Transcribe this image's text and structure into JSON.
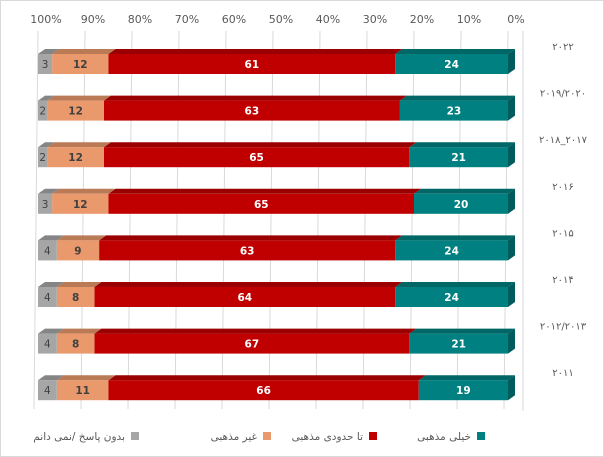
{
  "chart_data": {
    "type": "bar",
    "stacked": true,
    "orientation": "horizontal",
    "x_reversed": true,
    "xlim": [
      0,
      100
    ],
    "x_ticks": [
      "0%",
      "10%",
      "20%",
      "30%",
      "40%",
      "50%",
      "60%",
      "70%",
      "80%",
      "90%",
      "100%"
    ],
    "categories": [
      "۲۰۲۲",
      "۲۰۱۹/۲۰۲۰",
      "۲۰۱۸_۲۰۱۷",
      "۲۰۱۶",
      "۲۰۱۵",
      "۲۰۱۴",
      "۲۰۱۲/۲۰۱۳",
      "۲۰۱۱"
    ],
    "series": [
      {
        "name": "خیلی مذهبی",
        "color": "#008080",
        "values": [
          24,
          23,
          21,
          20,
          24,
          24,
          21,
          19
        ]
      },
      {
        "name": "تا حدودی مذهبی",
        "color": "#c00000",
        "values": [
          61,
          63,
          65,
          65,
          63,
          64,
          67,
          66
        ]
      },
      {
        "name": "غیر مذهبی",
        "color": "#e9996b",
        "values": [
          12,
          12,
          12,
          12,
          9,
          8,
          8,
          11
        ]
      },
      {
        "name": "بدون پاسخ /نمی دانم",
        "color": "#a6a6a6",
        "values": [
          3,
          2,
          2,
          3,
          4,
          4,
          4,
          4
        ]
      }
    ],
    "legend": "bottom"
  }
}
